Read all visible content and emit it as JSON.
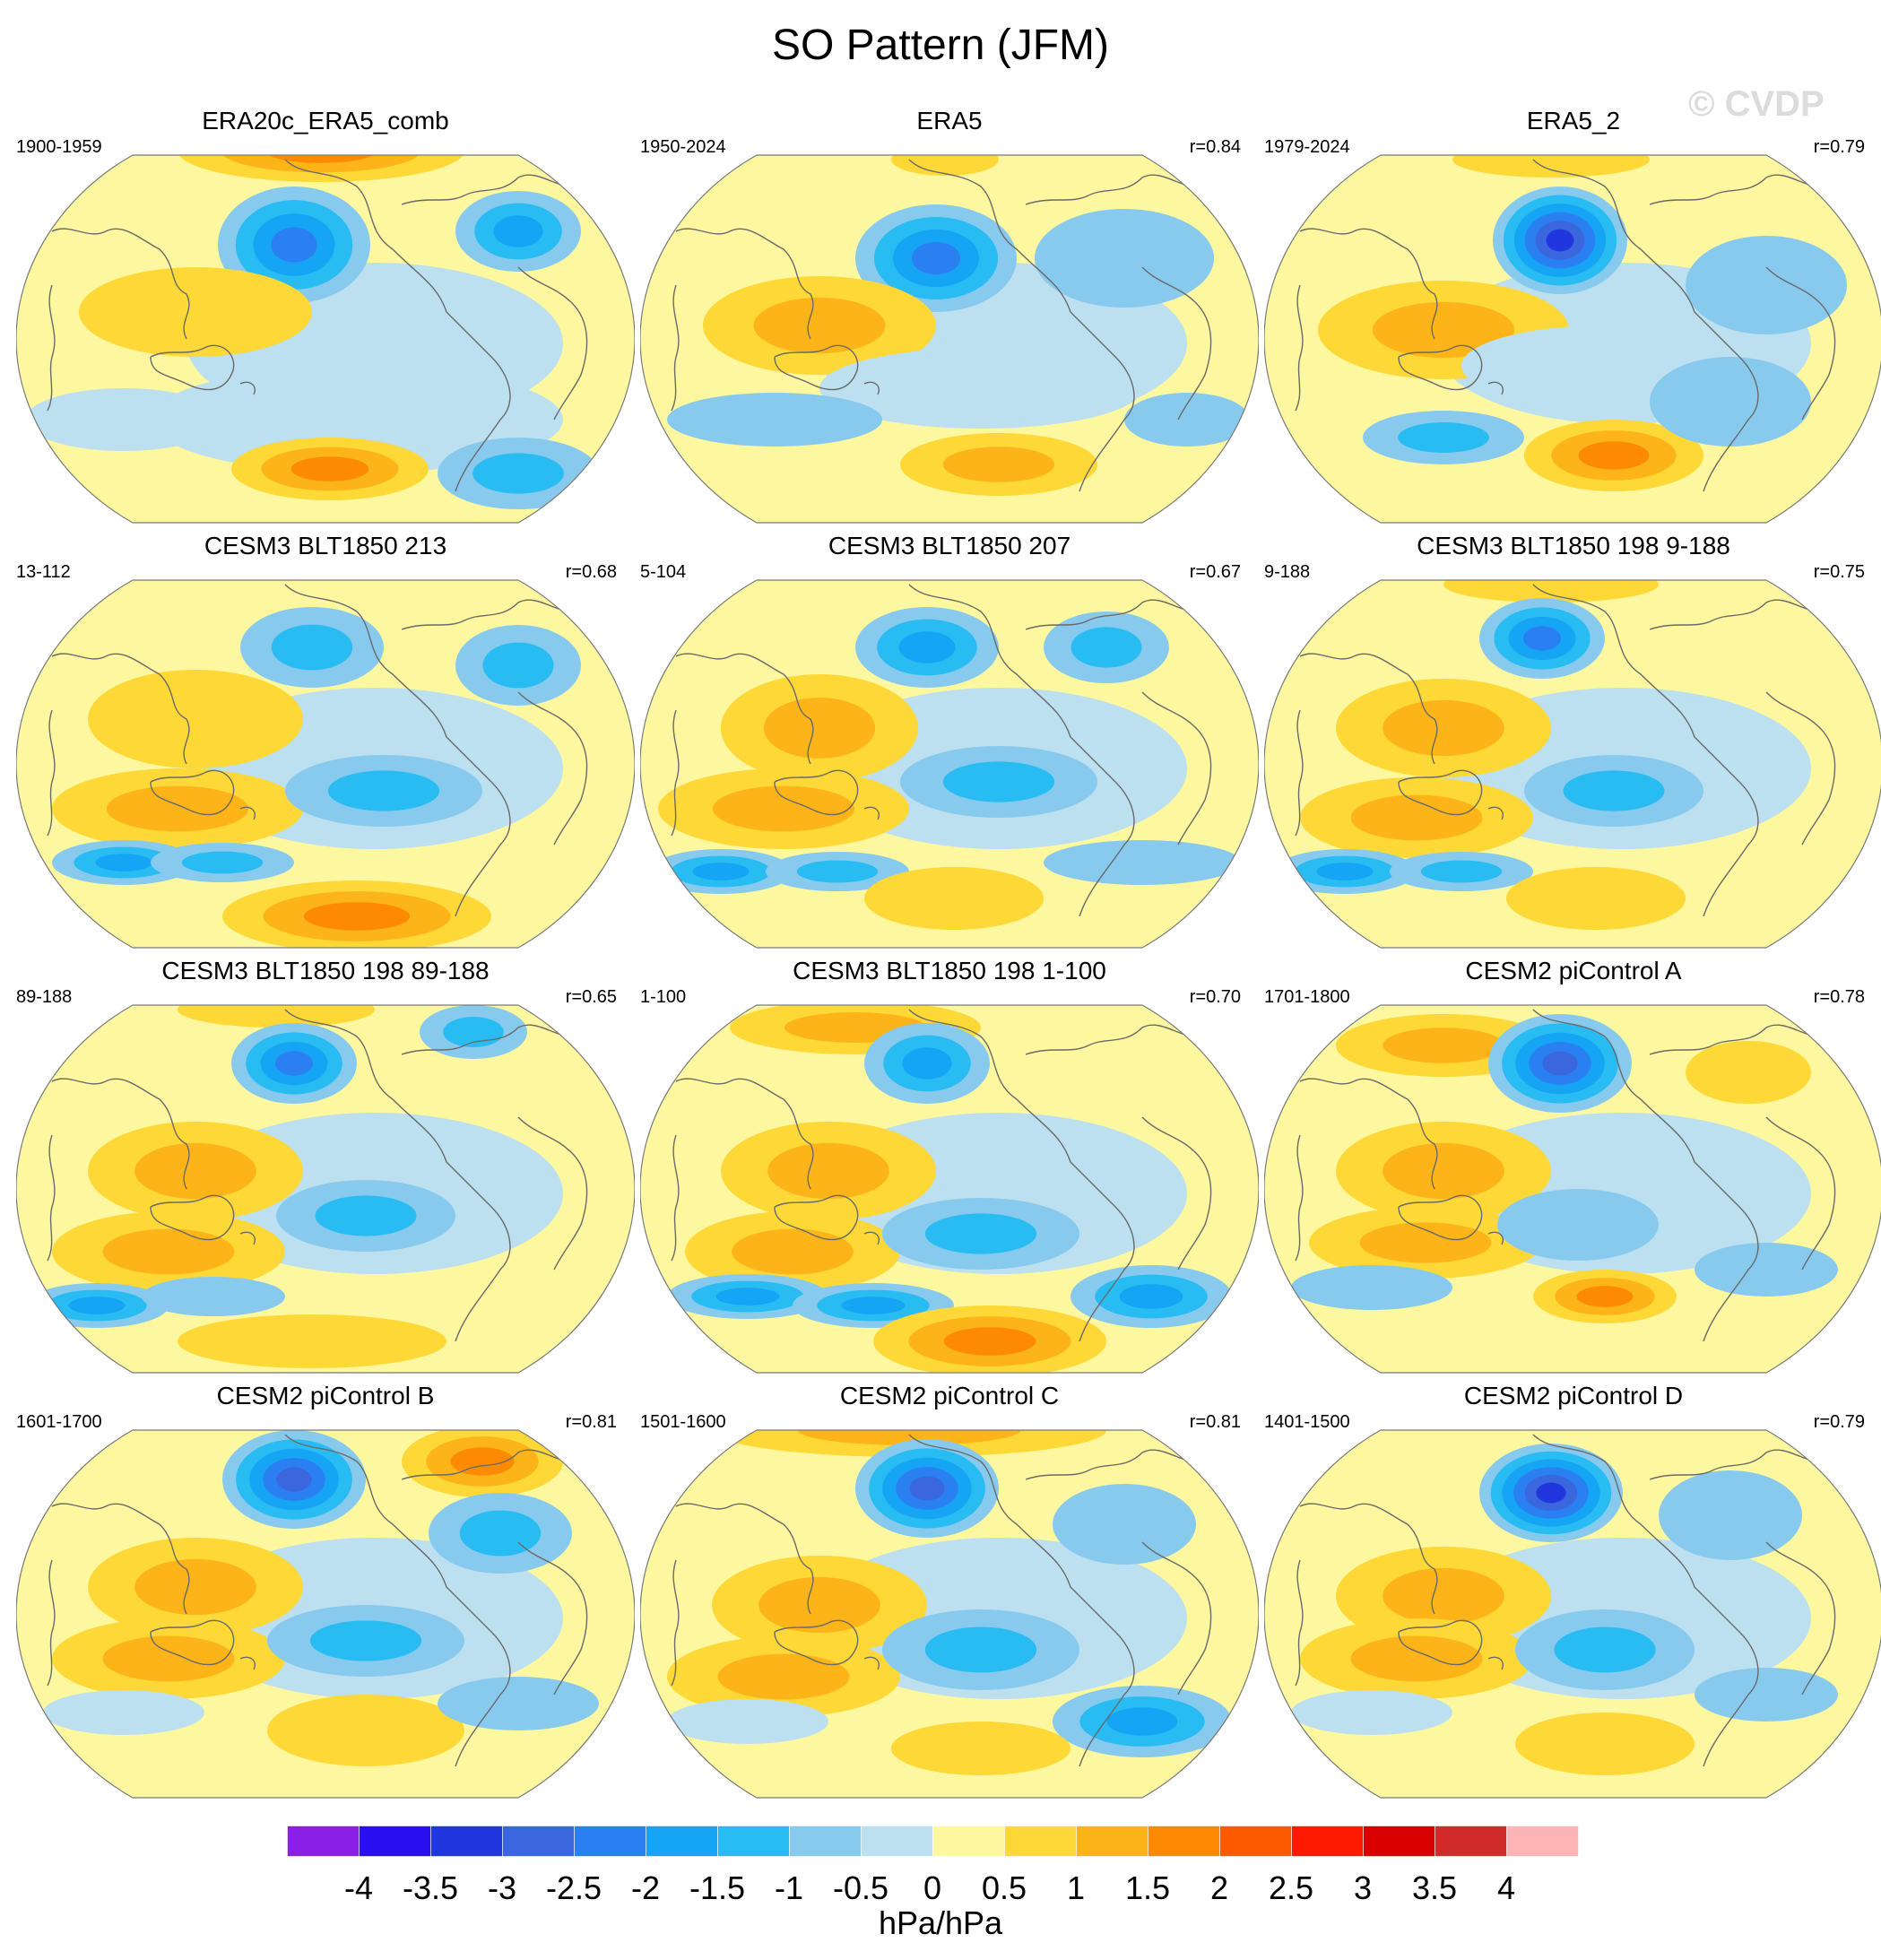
{
  "figure": {
    "title": "SO Pattern (JFM)",
    "watermark": "© CVDP"
  },
  "chart_data": {
    "type": "map",
    "variable": "SO pattern regression",
    "season": "JFM",
    "units": "hPa/hPa",
    "projection": "Robinson",
    "panels": [
      {
        "title": "ERA20c_ERA5_comb",
        "years": "1900-1959",
        "corr": ""
      },
      {
        "title": "ERA5",
        "years": "1950-2024",
        "corr": "r=0.84"
      },
      {
        "title": "ERA5_2",
        "years": "1979-2024",
        "corr": "r=0.79"
      },
      {
        "title": "CESM3 BLT1850 213",
        "years": "13-112",
        "corr": "r=0.68"
      },
      {
        "title": "CESM3 BLT1850 207",
        "years": "5-104",
        "corr": "r=0.67"
      },
      {
        "title": "CESM3 BLT1850 198 9-188",
        "years": "9-188",
        "corr": "r=0.75"
      },
      {
        "title": "CESM3 BLT1850 198 89-188",
        "years": "89-188",
        "corr": "r=0.65"
      },
      {
        "title": "CESM3 BLT1850 198 1-100",
        "years": "1-100",
        "corr": "r=0.70"
      },
      {
        "title": "CESM2 piControl A",
        "years": "1701-1800",
        "corr": "r=0.78"
      },
      {
        "title": "CESM2 piControl B",
        "years": "1601-1700",
        "corr": "r=0.81"
      },
      {
        "title": "CESM2 piControl C",
        "years": "1501-1600",
        "corr": "r=0.81"
      },
      {
        "title": "CESM2 piControl D",
        "years": "1401-1500",
        "corr": "r=0.79"
      }
    ],
    "colorbar": {
      "levels": [
        -4,
        -3.5,
        -3,
        -2.5,
        -2,
        -1.5,
        -1,
        -0.5,
        0,
        0.5,
        1,
        1.5,
        2,
        2.5,
        3,
        3.5,
        4
      ],
      "labels": [
        "-4",
        "-3.5",
        "-3",
        "-2.5",
        "-2",
        "-1.5",
        "-1",
        "-0.5",
        "0",
        "0.5",
        "1",
        "1.5",
        "2",
        "2.5",
        "3",
        "3.5",
        "4"
      ],
      "colors": [
        "#8a20e8",
        "#2a10f0",
        "#2236e0",
        "#3a66de",
        "#2a80f0",
        "#16a4f4",
        "#28bcf2",
        "#88caee",
        "#bce0f0",
        "#fdf7a0",
        "#fdd836",
        "#fdb418",
        "#fd8a00",
        "#fd5a00",
        "#fd1a00",
        "#d80000",
        "#d02a2a",
        "#fcb4b4"
      ],
      "unit_label": "hPa/hPa"
    }
  }
}
